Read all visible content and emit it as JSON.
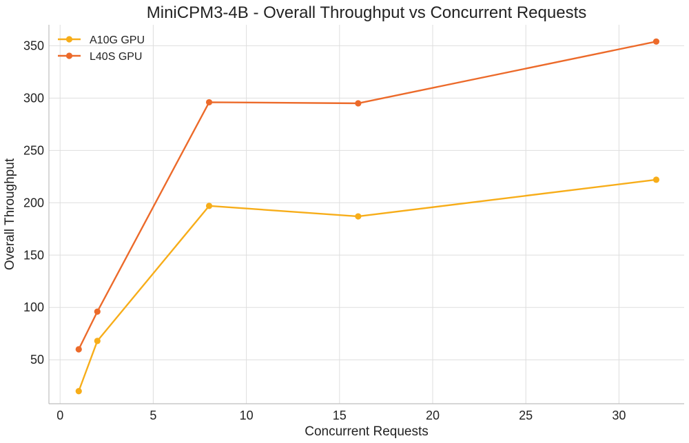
{
  "chart_data": {
    "type": "line",
    "title": "MiniCPM3-4B - Overall Throughput vs Concurrent Requests",
    "xlabel": "Concurrent Requests",
    "ylabel": "Overall Throughput",
    "x": [
      1,
      2,
      8,
      16,
      32
    ],
    "xlim": [
      -0.6,
      33.5
    ],
    "ylim": [
      8,
      370
    ],
    "xticks": [
      0,
      5,
      10,
      15,
      20,
      25,
      30
    ],
    "yticks": [
      50,
      100,
      150,
      200,
      250,
      300,
      350
    ],
    "grid": true,
    "legend_position": "top-left",
    "series": [
      {
        "name": "A10G GPU",
        "color": "#f7ad19",
        "values": [
          20,
          68,
          197,
          187,
          222
        ]
      },
      {
        "name": "L40S GPU",
        "color": "#ec6a2a",
        "values": [
          60,
          96,
          296,
          295,
          354
        ]
      }
    ]
  }
}
